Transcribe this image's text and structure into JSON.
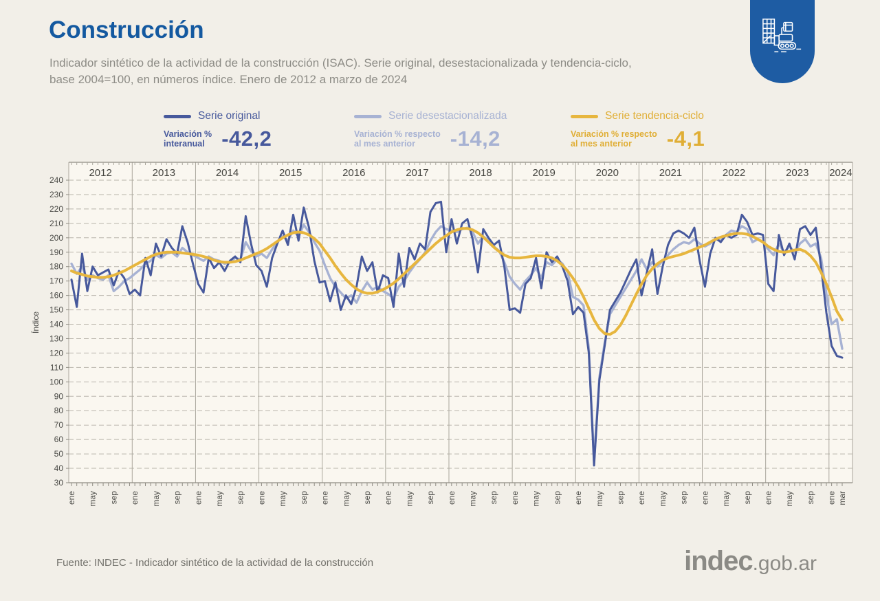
{
  "header": {
    "title": "Construcción",
    "subtitle_line1": "Indicador sintético de la actividad de la construcción (ISAC). Serie original, desestacionalizada y tendencia-ciclo,",
    "subtitle_line2": "base 2004=100, en números índice. Enero de 2012 a marzo de 2024"
  },
  "legend": {
    "original": {
      "label": "Serie original",
      "metric_line1": "Variación %",
      "metric_line2": "interanual",
      "value": "-42,2",
      "color": "#47599c"
    },
    "desestacionalizada": {
      "label": "Serie desestacionalizada",
      "metric_line1": "Variación % respecto",
      "metric_line2": "al mes anterior",
      "value": "-14,2",
      "color": "#a7b2d3"
    },
    "tendencia": {
      "label": "Serie tendencia-ciclo",
      "metric_line1": "Variación % respecto",
      "metric_line2": "al mes anterior",
      "value": "-4,1",
      "color": "#e7b63e"
    }
  },
  "chart_data": {
    "type": "line",
    "title": "ISAC - Serie original, desestacionalizada y tendencia-ciclo",
    "xlabel": "",
    "ylabel": "Índice",
    "ylim": [
      30,
      240
    ],
    "ytick_step": 10,
    "period_start": "ene 2012",
    "period_end": "mar 2024",
    "grid": "horizontal-dashed, vertical-solid-year-separators",
    "legend_position": "top",
    "years": [
      2012,
      2013,
      2014,
      2015,
      2016,
      2017,
      2018,
      2019,
      2020,
      2021,
      2022,
      2023,
      2024
    ],
    "month_tick_labels_regular_years": [
      "ene",
      "may",
      "sep"
    ],
    "month_tick_labels_final_year": [
      "ene",
      "mar"
    ],
    "series": [
      {
        "name": "Serie original",
        "color": "#47599c",
        "values": [
          171,
          152,
          189,
          163,
          180,
          174,
          176,
          178,
          167,
          177,
          172,
          161,
          164,
          160,
          186,
          174,
          196,
          187,
          199,
          193,
          189,
          208,
          197,
          182,
          168,
          162,
          186,
          179,
          183,
          177,
          184,
          187,
          183,
          215,
          196,
          181,
          177,
          166,
          186,
          196,
          205,
          195,
          216,
          198,
          221,
          207,
          184,
          169,
          170,
          156,
          169,
          150,
          160,
          154,
          166,
          187,
          177,
          183,
          162,
          174,
          172,
          152,
          189,
          166,
          193,
          185,
          196,
          192,
          218,
          224,
          225,
          190,
          213,
          196,
          210,
          213,
          199,
          176,
          206,
          200,
          195,
          198,
          180,
          150,
          151,
          148,
          168,
          172,
          186,
          165,
          190,
          183,
          187,
          180,
          170,
          147,
          152,
          148,
          120,
          42,
          101,
          125,
          150,
          156,
          162,
          170,
          178,
          185,
          160,
          176,
          192,
          161,
          180,
          195,
          203,
          205,
          203,
          200,
          207,
          184,
          166,
          189,
          200,
          197,
          202,
          200,
          202,
          216,
          211,
          202,
          203,
          202,
          168,
          163,
          202,
          188,
          196,
          185,
          206,
          208,
          202,
          207,
          180,
          148,
          125,
          118,
          116.8
        ]
      },
      {
        "name": "Serie desestacionalizada",
        "color": "#a7b2d3",
        "values": [
          182,
          175,
          180,
          171,
          174,
          172,
          171,
          174,
          163,
          166,
          170,
          172,
          175,
          178,
          182,
          184,
          188,
          186,
          189,
          190,
          187,
          193,
          190,
          188,
          186,
          184,
          187,
          185,
          184,
          182,
          183,
          186,
          185,
          197,
          191,
          187,
          189,
          186,
          192,
          197,
          201,
          198,
          205,
          201,
          209,
          204,
          197,
          191,
          181,
          172,
          166,
          162,
          158,
          160,
          155,
          163,
          169,
          164,
          166,
          163,
          161,
          158,
          166,
          170,
          176,
          181,
          185,
          190,
          198,
          204,
          208,
          206,
          205,
          204,
          206,
          207,
          204,
          196,
          201,
          198,
          194,
          191,
          183,
          173,
          168,
          164,
          170,
          174,
          179,
          172,
          183,
          181,
          185,
          182,
          176,
          159,
          157,
          153,
          123,
          45,
          103,
          127,
          147,
          153,
          159,
          165,
          171,
          177,
          185,
          178,
          183,
          180,
          184,
          188,
          192,
          195,
          197,
          196,
          199,
          196,
          194,
          196,
          199,
          198,
          202,
          205,
          204,
          208,
          206,
          197,
          199,
          197,
          192,
          188,
          196,
          190,
          194,
          190,
          196,
          199,
          194,
          196,
          186,
          161,
          140,
          143.4,
          123
        ]
      },
      {
        "name": "Serie tendencia-ciclo",
        "color": "#e7b63e",
        "values": [
          177,
          175.5,
          174.5,
          173.5,
          173,
          172.5,
          172.5,
          173,
          174,
          175.5,
          177,
          179,
          181,
          183,
          185,
          187,
          188.5,
          189.5,
          190,
          190,
          190,
          189.5,
          189,
          188.5,
          188,
          187,
          186,
          184.5,
          183.5,
          183,
          183,
          183.5,
          184.5,
          186,
          187.5,
          189,
          190.5,
          192.5,
          195,
          197.5,
          200,
          202,
          203.5,
          204,
          203.5,
          202,
          199.5,
          196,
          191,
          186,
          180.5,
          175.5,
          171,
          167.5,
          164.5,
          162.5,
          161.5,
          161.5,
          162.5,
          164,
          166,
          168.5,
          171.5,
          175,
          178.5,
          182,
          185.5,
          189,
          192.5,
          196,
          199,
          201.5,
          204,
          205.5,
          206.5,
          206.5,
          205.5,
          203.5,
          200.5,
          197,
          193.5,
          190.5,
          188,
          186.5,
          186,
          186,
          186.5,
          187,
          187.5,
          187.5,
          187,
          186,
          184,
          181,
          177,
          172,
          166,
          159,
          151,
          143,
          137,
          133.5,
          133,
          135,
          139.5,
          146,
          153.5,
          161,
          168,
          174,
          178.5,
          182,
          184.5,
          186,
          187,
          188,
          189,
          190.5,
          192,
          193.5,
          195,
          197,
          199,
          200.5,
          201.5,
          202.5,
          203,
          203,
          202.5,
          201,
          199,
          197,
          194,
          192,
          190.5,
          190,
          190.5,
          191.5,
          192,
          190.5,
          187.5,
          183,
          176,
          168,
          159,
          149,
          142.9
        ]
      }
    ]
  },
  "footer": {
    "source": "Fuente: INDEC - Indicador sintético de la actividad de la construcción"
  },
  "branding": {
    "logo_text": "indec",
    "domain_suffix": ".gob.ar"
  }
}
